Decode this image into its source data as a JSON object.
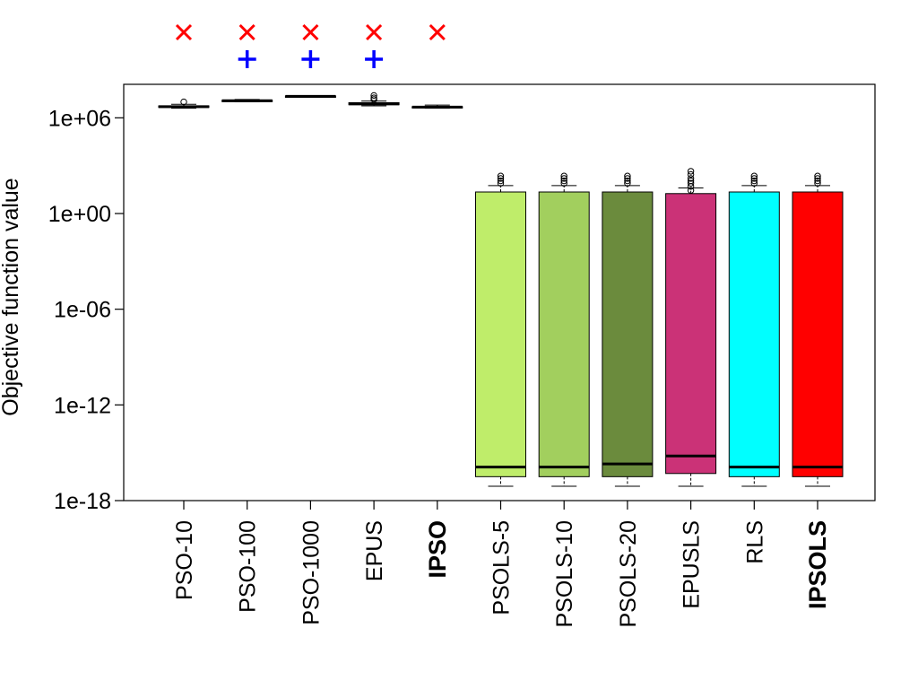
{
  "chart_data": {
    "type": "boxplot",
    "title": "",
    "xlabel": "",
    "ylabel": "Objective function value",
    "y_scale": "log10",
    "ylim_log10": [
      -18,
      8.1
    ],
    "y_ticks": [
      {
        "value_log10": 6,
        "label": "1e+06"
      },
      {
        "value_log10": 0,
        "label": "1e+00"
      },
      {
        "value_log10": -6,
        "label": "1e-06"
      },
      {
        "value_log10": -12,
        "label": "1e-12"
      },
      {
        "value_log10": -18,
        "label": "1e-18"
      }
    ],
    "categories": [
      "PSO-10",
      "PSO-100",
      "PSO-1000",
      "EPUS",
      "IPSO",
      "PSOLS-5",
      "PSOLS-10",
      "PSOLS-20",
      "EPUSLS",
      "RLS",
      "IPSOLS"
    ],
    "bold_categories": [
      "IPSO",
      "IPSOLS"
    ],
    "boxes_log10": [
      {
        "name": "PSO-10",
        "color": "#ffffff",
        "whisker_low": 6.6,
        "q1": 6.65,
        "median": 6.7,
        "q3": 6.75,
        "whisker_high": 6.85,
        "outliers": [
          7.0
        ]
      },
      {
        "name": "PSO-100",
        "color": "#ffffff",
        "whisker_low": 7.0,
        "q1": 7.05,
        "median": 7.07,
        "q3": 7.1,
        "whisker_high": 7.15,
        "outliers": []
      },
      {
        "name": "PSO-1000",
        "color": "#ffffff",
        "whisker_low": 7.3,
        "q1": 7.33,
        "median": 7.35,
        "q3": 7.37,
        "whisker_high": 7.4,
        "outliers": []
      },
      {
        "name": "EPUS",
        "color": "#ffffff",
        "whisker_low": 6.75,
        "q1": 6.82,
        "median": 6.88,
        "q3": 6.95,
        "whisker_high": 7.05,
        "outliers": [
          7.15,
          7.25,
          7.4
        ]
      },
      {
        "name": "IPSO",
        "color": "#ffffff",
        "whisker_low": 6.6,
        "q1": 6.63,
        "median": 6.67,
        "q3": 6.7,
        "whisker_high": 6.8,
        "outliers": []
      },
      {
        "name": "PSOLS-5",
        "color": "#bfed6a",
        "whisker_low": -17.1,
        "q1": -16.5,
        "median": -15.9,
        "q3": 1.35,
        "whisker_high": 1.75,
        "outliers": [
          1.9,
          2.05,
          2.2,
          2.35
        ]
      },
      {
        "name": "PSOLS-10",
        "color": "#a2cf5e",
        "whisker_low": -17.1,
        "q1": -16.5,
        "median": -15.9,
        "q3": 1.35,
        "whisker_high": 1.75,
        "outliers": [
          1.9,
          2.05,
          2.2,
          2.35
        ]
      },
      {
        "name": "PSOLS-20",
        "color": "#6b8b3d",
        "whisker_low": -17.1,
        "q1": -16.5,
        "median": -15.7,
        "q3": 1.35,
        "whisker_high": 1.75,
        "outliers": [
          1.9,
          2.05,
          2.2,
          2.35
        ]
      },
      {
        "name": "EPUSLS",
        "color": "#cb3277",
        "whisker_low": -17.1,
        "q1": -16.3,
        "median": -15.2,
        "q3": 1.25,
        "whisker_high": 1.6,
        "outliers": [
          1.45,
          1.7,
          1.9,
          2.05,
          2.2,
          2.45,
          2.65
        ]
      },
      {
        "name": "RLS",
        "color": "#00ffff",
        "whisker_low": -17.1,
        "q1": -16.5,
        "median": -15.9,
        "q3": 1.35,
        "whisker_high": 1.75,
        "outliers": [
          1.9,
          2.05,
          2.2,
          2.35
        ]
      },
      {
        "name": "IPSOLS",
        "color": "#ff0000",
        "whisker_low": -17.1,
        "q1": -16.5,
        "median": -15.9,
        "q3": 1.35,
        "whisker_high": 1.75,
        "outliers": [
          1.9,
          2.05,
          2.2,
          2.35
        ]
      }
    ],
    "significance_markers": [
      {
        "category": "PSO-10",
        "symbol": "×",
        "color": "#ff0000",
        "row": 1
      },
      {
        "category": "PSO-100",
        "symbol": "×",
        "color": "#ff0000",
        "row": 1
      },
      {
        "category": "PSO-100",
        "symbol": "+",
        "color": "#0000ff",
        "row": 2
      },
      {
        "category": "PSO-1000",
        "symbol": "×",
        "color": "#ff0000",
        "row": 1
      },
      {
        "category": "PSO-1000",
        "symbol": "+",
        "color": "#0000ff",
        "row": 2
      },
      {
        "category": "EPUS",
        "symbol": "×",
        "color": "#ff0000",
        "row": 1
      },
      {
        "category": "EPUS",
        "symbol": "+",
        "color": "#0000ff",
        "row": 2
      },
      {
        "category": "IPSO",
        "symbol": "×",
        "color": "#ff0000",
        "row": 1
      }
    ],
    "grid": false,
    "legend": "none"
  }
}
